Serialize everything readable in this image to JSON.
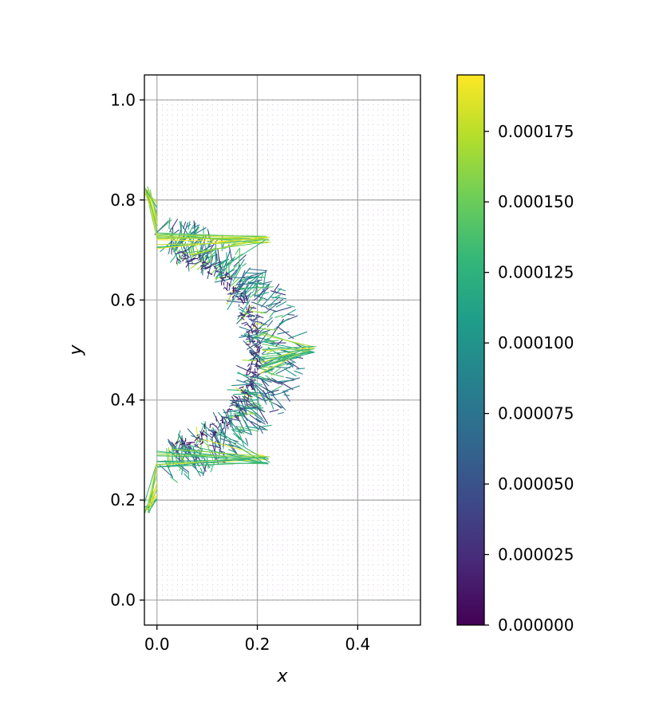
{
  "chart_data": {
    "type": "quiver",
    "title": "",
    "xlabel": "x",
    "ylabel": "y",
    "xlim": [
      -0.025,
      0.525
    ],
    "ylim": [
      -0.05,
      1.05
    ],
    "grid": true,
    "x_ticks": [
      {
        "value": 0.0,
        "label": "0.0"
      },
      {
        "value": 0.2,
        "label": "0.2"
      },
      {
        "value": 0.4,
        "label": "0.4"
      }
    ],
    "y_ticks": [
      {
        "value": 0.0,
        "label": "0.0"
      },
      {
        "value": 0.2,
        "label": "0.2"
      },
      {
        "value": 0.4,
        "label": "0.4"
      },
      {
        "value": 0.6,
        "label": "0.6"
      },
      {
        "value": 0.8,
        "label": "0.8"
      },
      {
        "value": 1.0,
        "label": "1.0"
      }
    ],
    "domain": {
      "x": [
        0.0,
        0.5
      ],
      "y": [
        0.0,
        1.0
      ]
    },
    "hole_center": [
      0.0,
      0.5
    ],
    "hole_radius": 0.2,
    "colorbar": {
      "colormap": "viridis",
      "range": [
        0.0,
        0.000195
      ],
      "ticks": [
        {
          "value": 0.0,
          "label": "0.000000"
        },
        {
          "value": 2.5e-05,
          "label": "0.000025"
        },
        {
          "value": 5e-05,
          "label": "0.000050"
        },
        {
          "value": 7.5e-05,
          "label": "0.000075"
        },
        {
          "value": 0.0001,
          "label": "0.000100"
        },
        {
          "value": 0.000125,
          "label": "0.000125"
        },
        {
          "value": 0.00015,
          "label": "0.000150"
        },
        {
          "value": 0.000175,
          "label": "0.000175"
        }
      ],
      "stops": [
        "#440154",
        "#482878",
        "#3e4989",
        "#31688e",
        "#26828e",
        "#1f9e89",
        "#35b779",
        "#6ece58",
        "#b5de2b",
        "#fde725"
      ]
    },
    "background_color": "#440154",
    "spikes": [
      {
        "tip": [
          0.31,
          0.5
        ],
        "base_y": [
          0.45,
          0.55
        ]
      },
      {
        "tip": [
          0.22,
          0.72
        ],
        "base_y": [
          0.66,
          0.74
        ]
      },
      {
        "tip": [
          0.22,
          0.28
        ],
        "base_y": [
          0.26,
          0.34
        ]
      },
      {
        "tip": [
          -0.02,
          0.82
        ],
        "base_y": [
          0.72,
          0.8
        ]
      },
      {
        "tip": [
          -0.02,
          0.18
        ],
        "base_y": [
          0.2,
          0.28
        ]
      }
    ]
  }
}
